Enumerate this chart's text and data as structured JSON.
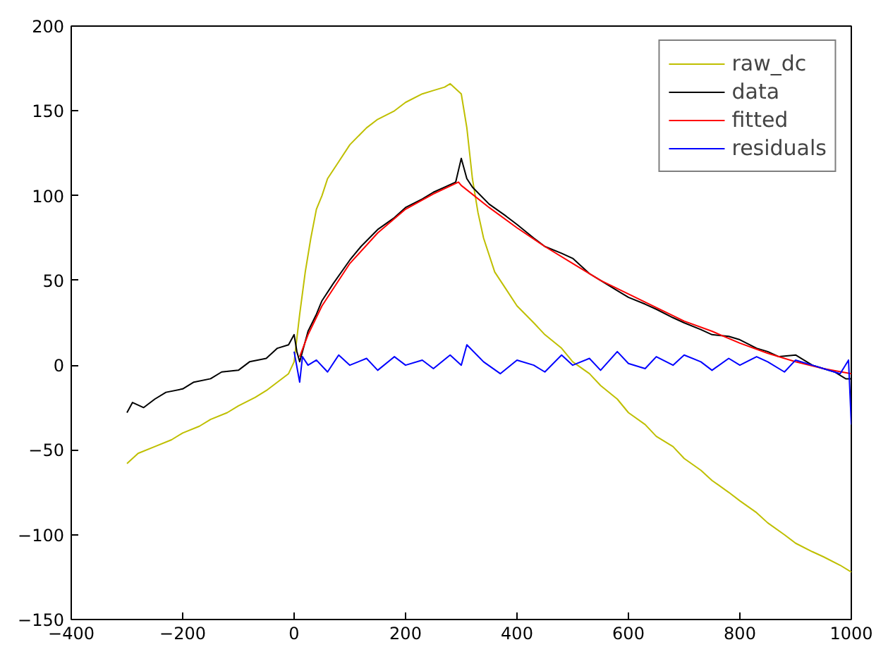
{
  "chart_data": {
    "type": "line",
    "xlim": [
      -400,
      1000
    ],
    "ylim": [
      -150,
      200
    ],
    "xticks": [
      -400,
      -200,
      0,
      200,
      400,
      600,
      800,
      1000
    ],
    "yticks": [
      -150,
      -100,
      -50,
      0,
      50,
      100,
      150,
      200
    ],
    "grid": false,
    "legend": "top right",
    "series": [
      {
        "name": "raw_dc",
        "color": "#bfbf00",
        "x": [
          -300,
          -280,
          -250,
          -220,
          -200,
          -170,
          -150,
          -120,
          -100,
          -70,
          -50,
          -30,
          -10,
          0,
          10,
          20,
          30,
          40,
          50,
          60,
          80,
          100,
          130,
          150,
          180,
          200,
          230,
          250,
          270,
          280,
          290,
          300,
          305,
          310,
          320,
          330,
          340,
          360,
          380,
          400,
          430,
          450,
          480,
          500,
          530,
          550,
          580,
          600,
          630,
          650,
          680,
          700,
          730,
          750,
          780,
          800,
          830,
          850,
          880,
          900,
          930,
          950,
          980,
          1000
        ],
        "values": [
          -58,
          -52,
          -48,
          -44,
          -40,
          -36,
          -32,
          -28,
          -24,
          -19,
          -15,
          -10,
          -5,
          2,
          30,
          55,
          75,
          92,
          100,
          110,
          120,
          130,
          140,
          145,
          150,
          155,
          160,
          162,
          164,
          166,
          163,
          160,
          150,
          140,
          110,
          90,
          75,
          55,
          45,
          35,
          25,
          18,
          10,
          2,
          -5,
          -12,
          -20,
          -28,
          -35,
          -42,
          -48,
          -55,
          -62,
          -68,
          -75,
          -80,
          -87,
          -93,
          -100,
          -105,
          -110,
          -113,
          -118,
          -122
        ]
      },
      {
        "name": "data",
        "color": "#000000",
        "x": [
          -300,
          -290,
          -270,
          -250,
          -230,
          -200,
          -180,
          -150,
          -130,
          -100,
          -80,
          -50,
          -30,
          -10,
          0,
          5,
          10,
          25,
          40,
          50,
          70,
          100,
          120,
          150,
          180,
          200,
          230,
          250,
          270,
          290,
          300,
          310,
          320,
          350,
          380,
          400,
          430,
          450,
          480,
          500,
          530,
          550,
          580,
          600,
          630,
          650,
          680,
          700,
          730,
          750,
          780,
          800,
          830,
          850,
          870,
          900,
          930,
          950,
          970,
          990,
          1000
        ],
        "values": [
          -28,
          -22,
          -25,
          -20,
          -16,
          -14,
          -10,
          -8,
          -4,
          -3,
          2,
          4,
          10,
          12,
          18,
          8,
          2,
          20,
          30,
          38,
          48,
          62,
          70,
          80,
          87,
          93,
          98,
          102,
          105,
          108,
          122,
          110,
          105,
          95,
          88,
          83,
          75,
          70,
          66,
          63,
          54,
          50,
          44,
          40,
          36,
          33,
          28,
          25,
          21,
          18,
          17,
          15,
          10,
          8,
          5,
          6,
          0,
          -2,
          -4,
          -8,
          -8
        ]
      },
      {
        "name": "fitted",
        "color": "#ff0000",
        "x": [
          10,
          25,
          50,
          100,
          150,
          200,
          250,
          295,
          300,
          350,
          400,
          450,
          500,
          550,
          600,
          650,
          700,
          750,
          800,
          850,
          900,
          950,
          1000
        ],
        "values": [
          5,
          18,
          35,
          60,
          78,
          92,
          101,
          108,
          106,
          93,
          81,
          70,
          60,
          50,
          42,
          34,
          26,
          20,
          13,
          7,
          2,
          -2,
          -5
        ]
      },
      {
        "name": "residuals",
        "color": "#0000ff",
        "x": [
          0,
          10,
          15,
          25,
          40,
          60,
          80,
          100,
          130,
          150,
          180,
          200,
          230,
          250,
          280,
          300,
          310,
          340,
          370,
          400,
          430,
          450,
          480,
          500,
          530,
          550,
          580,
          600,
          630,
          650,
          680,
          700,
          730,
          750,
          780,
          800,
          830,
          850,
          880,
          900,
          930,
          950,
          980,
          995,
          1000
        ],
        "values": [
          8,
          -10,
          5,
          0,
          3,
          -4,
          6,
          0,
          4,
          -3,
          5,
          0,
          3,
          -2,
          6,
          0,
          12,
          2,
          -5,
          3,
          0,
          -4,
          6,
          0,
          4,
          -3,
          8,
          1,
          -2,
          5,
          0,
          6,
          2,
          -3,
          4,
          0,
          5,
          2,
          -4,
          3,
          0,
          -2,
          -5,
          3,
          -35
        ]
      }
    ]
  }
}
